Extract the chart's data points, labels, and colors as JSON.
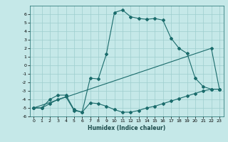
{
  "xlabel": "Humidex (Indice chaleur)",
  "xlim": [
    -0.5,
    23.5
  ],
  "ylim": [
    -6,
    7
  ],
  "bg_color": "#c5e8e8",
  "grid_color": "#9ecece",
  "line_color": "#1a6b6b",
  "line1_x": [
    0,
    1,
    2,
    3,
    4,
    5,
    6,
    7,
    8,
    9,
    10,
    11,
    12,
    13,
    14,
    15,
    16,
    17,
    18,
    19,
    20,
    21,
    22,
    23
  ],
  "line1_y": [
    -5,
    -5,
    -4.5,
    -4,
    -3.7,
    -5.3,
    -5.5,
    -4.4,
    -4.5,
    -4.8,
    -5.2,
    -5.5,
    -5.5,
    -5.3,
    -5.0,
    -4.8,
    -4.5,
    -4.2,
    -3.9,
    -3.6,
    -3.3,
    -3.0,
    -2.8,
    -2.8
  ],
  "line2_x": [
    0,
    1,
    2,
    3,
    4,
    5,
    6,
    7,
    8,
    9,
    10,
    11,
    12,
    13,
    14,
    15,
    16,
    17,
    18,
    19,
    20,
    21,
    22,
    23
  ],
  "line2_y": [
    -5,
    -5,
    -4.0,
    -3.5,
    -3.5,
    -5.2,
    -5.5,
    -1.5,
    -1.6,
    1.3,
    6.2,
    6.5,
    5.7,
    5.5,
    5.4,
    5.5,
    5.3,
    3.2,
    2.0,
    1.4,
    -1.5,
    -2.5,
    -2.8,
    -2.8
  ],
  "line3_x": [
    0,
    22,
    23
  ],
  "line3_y": [
    -5,
    2.0,
    -2.8
  ],
  "yticks": [
    -6,
    -5,
    -4,
    -3,
    -2,
    -1,
    0,
    1,
    2,
    3,
    4,
    5,
    6
  ],
  "xticks": [
    0,
    1,
    2,
    3,
    4,
    5,
    6,
    7,
    8,
    9,
    10,
    11,
    12,
    13,
    14,
    15,
    16,
    17,
    18,
    19,
    20,
    21,
    22,
    23
  ]
}
